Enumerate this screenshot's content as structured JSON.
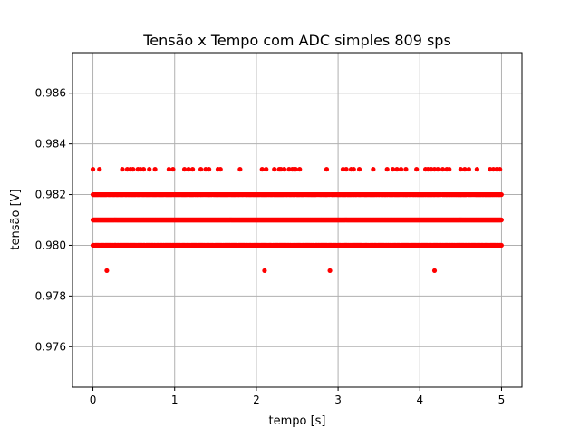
{
  "chart_data": {
    "type": "scatter",
    "title": "Tensão x Tempo com ADC simples 809 sps",
    "xlabel": "tempo [s]",
    "ylabel": "tensão [V]",
    "xlim": [
      -0.25,
      5.25
    ],
    "ylim": [
      0.9744,
      0.9876
    ],
    "xticks": [
      0,
      1,
      2,
      3,
      4,
      5
    ],
    "xtick_labels": [
      "0",
      "1",
      "2",
      "3",
      "4",
      "5"
    ],
    "yticks": [
      0.976,
      0.978,
      0.98,
      0.982,
      0.984,
      0.986
    ],
    "ytick_labels": [
      "0.976",
      "0.978",
      "0.980",
      "0.982",
      "0.984",
      "0.986"
    ],
    "grid": true,
    "marker_color": "#ff0000",
    "samples_per_second": 809,
    "duration_s": 5.0,
    "levels": [
      {
        "value": 0.981,
        "coverage": "continuous"
      },
      {
        "value": 0.982,
        "coverage": "dense"
      },
      {
        "value": 0.98,
        "coverage": "dense"
      },
      {
        "value": 0.983,
        "coverage": "sparse",
        "x": [
          0.0,
          0.08,
          0.36,
          0.42,
          0.46,
          0.49,
          0.55,
          0.58,
          0.62,
          0.69,
          0.76,
          0.93,
          0.98,
          1.12,
          1.17,
          1.22,
          1.32,
          1.38,
          1.42,
          1.53,
          1.56,
          1.8,
          2.07,
          2.12,
          2.22,
          2.28,
          2.3,
          2.34,
          2.4,
          2.44,
          2.46,
          2.48,
          2.53,
          2.86,
          3.06,
          3.1,
          3.16,
          3.19,
          3.26,
          3.43,
          3.6,
          3.67,
          3.72,
          3.77,
          3.83,
          3.96,
          4.07,
          4.1,
          4.14,
          4.18,
          4.22,
          4.28,
          4.33,
          4.36,
          4.5,
          4.55,
          4.6,
          4.7,
          4.86,
          4.9,
          4.94,
          4.98
        ]
      },
      {
        "value": 0.979,
        "coverage": "sparse",
        "x": [
          0.17,
          2.1,
          2.9,
          4.18
        ]
      }
    ]
  }
}
